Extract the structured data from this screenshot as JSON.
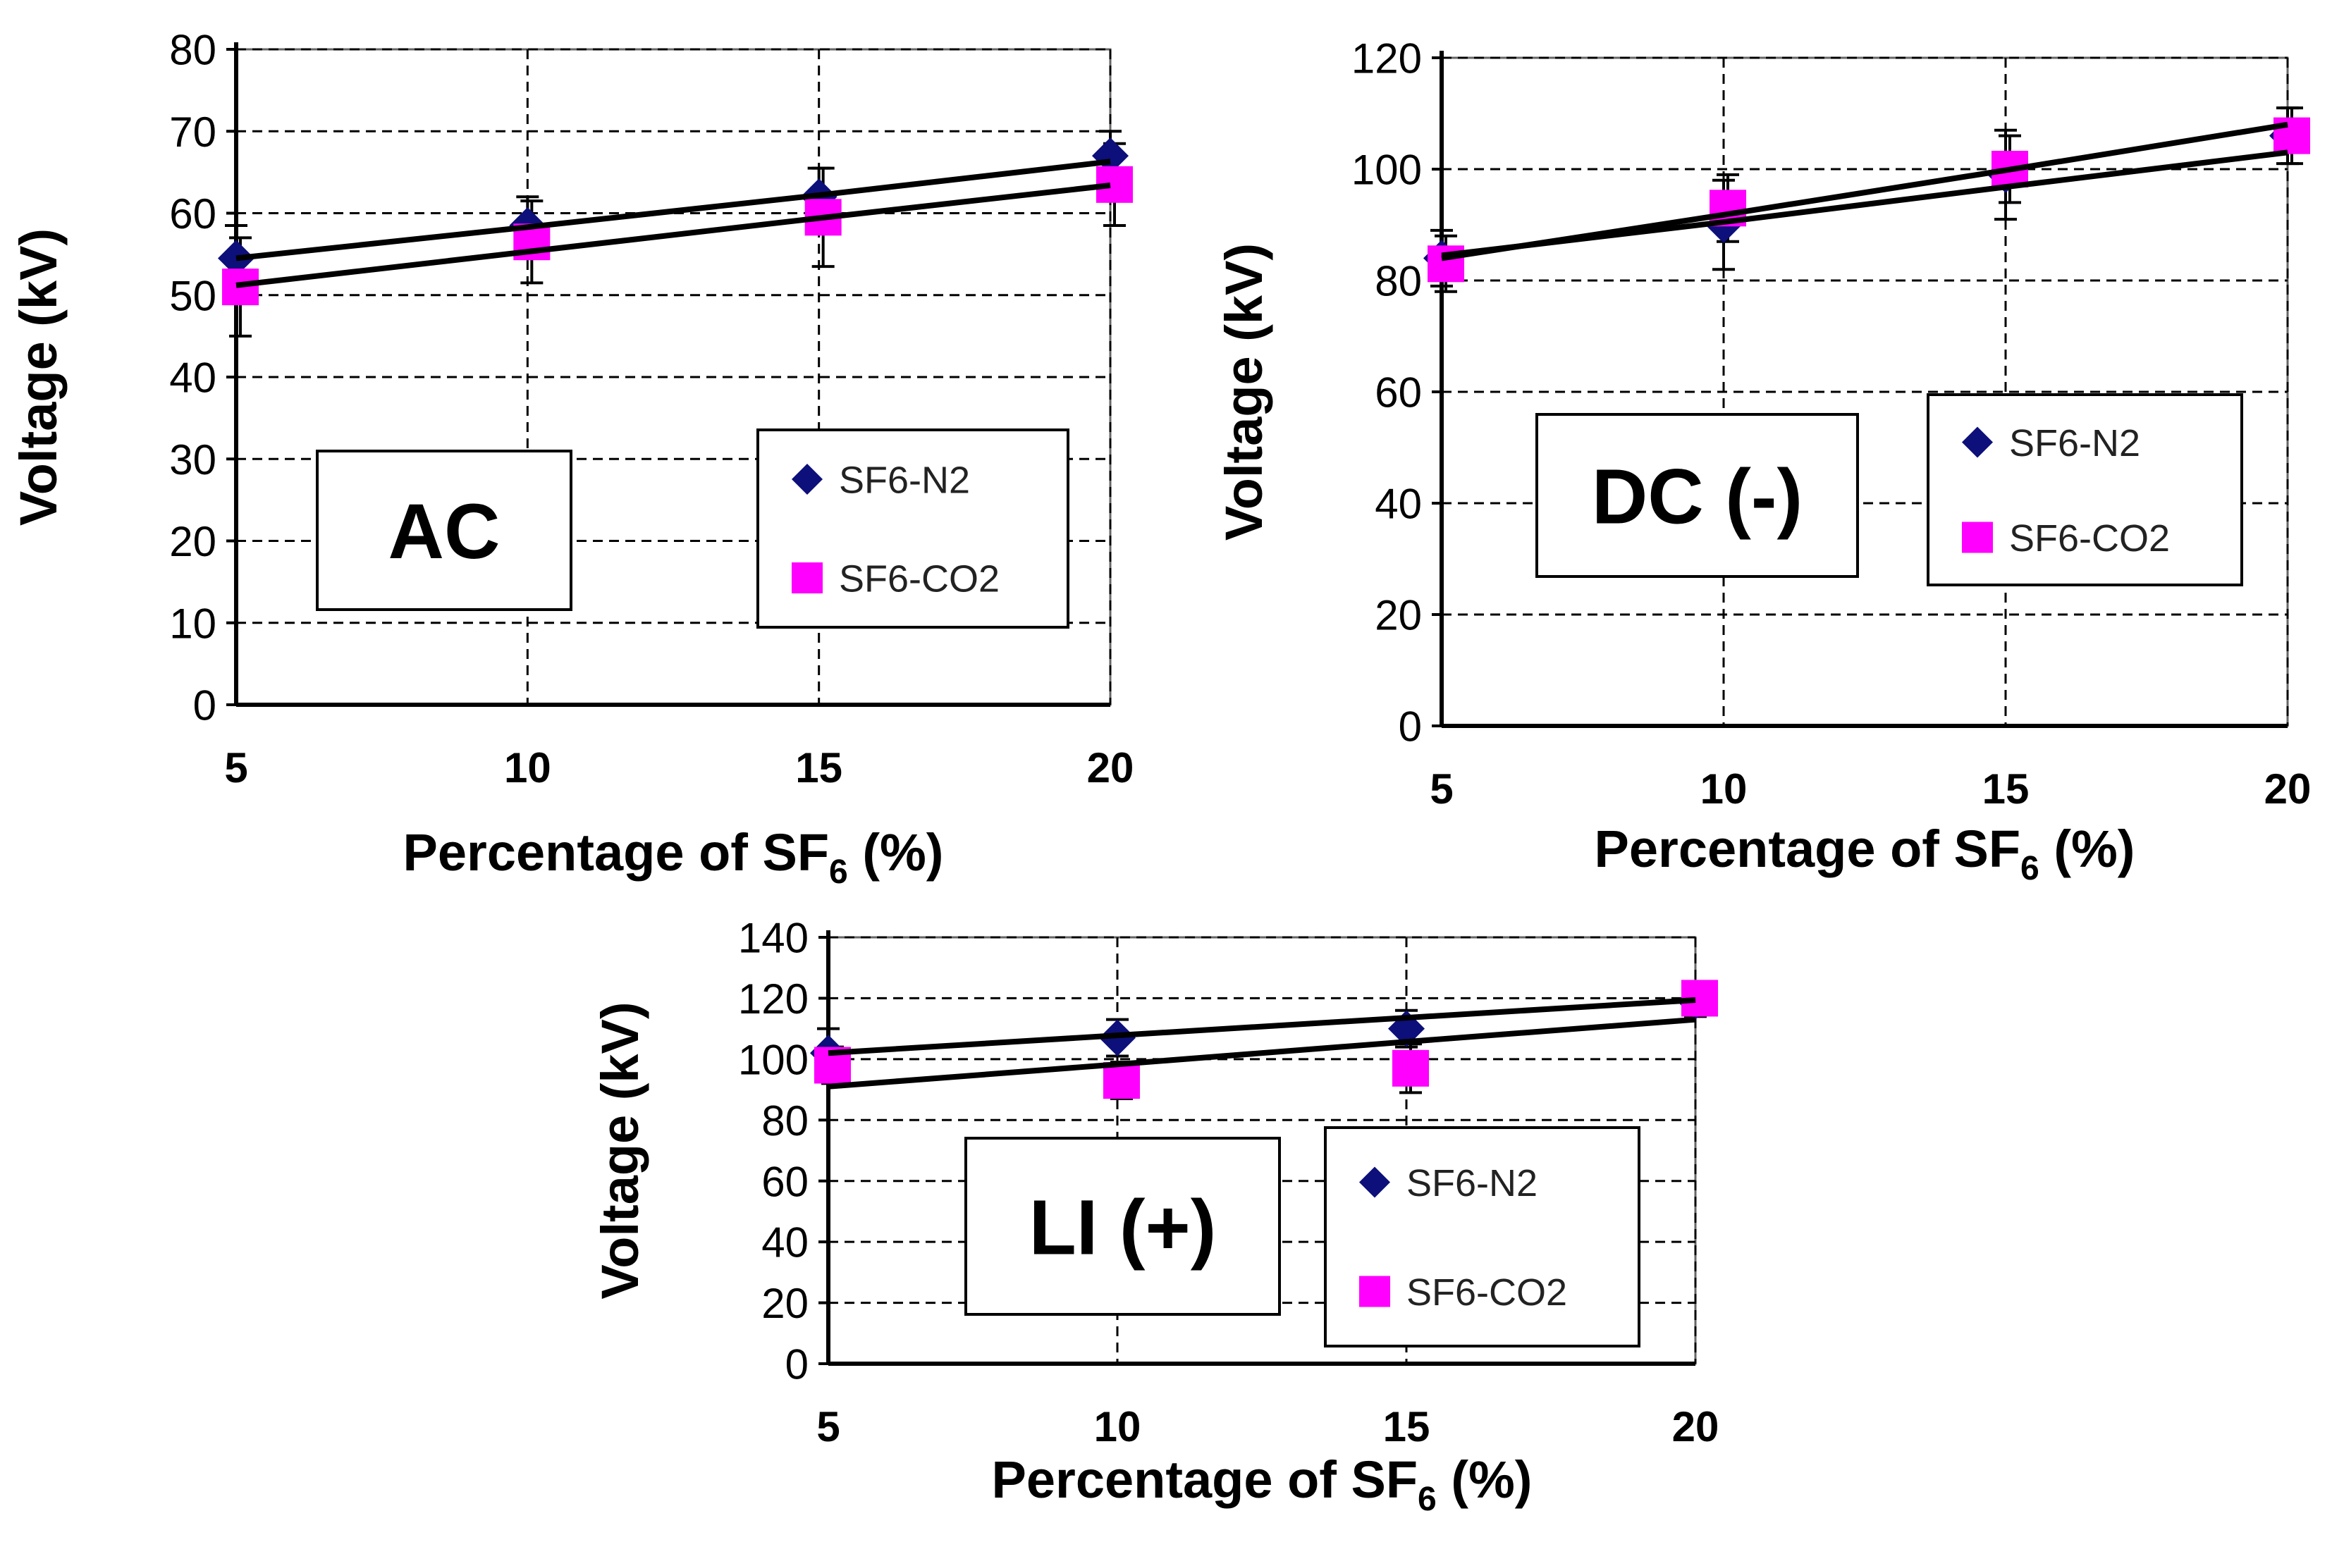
{
  "figure": {
    "series_names": [
      "SF6-N2",
      "SF6-CO2"
    ],
    "colors": {
      "n2": "#0d0f7a",
      "co2": "#ff00ff",
      "line": "#000000",
      "grid": "#000000"
    }
  },
  "chart_data": [
    {
      "type": "scatter",
      "label": "AC",
      "xlabel_main": "Percentage of SF",
      "xlabel_sub": "6",
      "xlabel_tail": " (%)",
      "ylabel": "Voltage (kV)",
      "x": [
        5,
        10,
        15,
        20
      ],
      "x_ticks": [
        "5",
        "10",
        "15",
        "20"
      ],
      "y_ticks": [
        "0",
        "10",
        "20",
        "30",
        "40",
        "50",
        "60",
        "70",
        "80"
      ],
      "xlim": [
        5,
        20
      ],
      "ylim": [
        0,
        80
      ],
      "grid": true,
      "legend_position": "lower-right",
      "series": [
        {
          "name": "SF6-N2",
          "values": [
            54.5,
            58.5,
            62,
            67
          ],
          "errors": [
            4,
            3.5,
            3.5,
            3
          ],
          "trend": [
            54.5,
            58.3,
            62.2,
            66.3
          ]
        },
        {
          "name": "SF6-CO2",
          "values": [
            51,
            56.5,
            59.5,
            63.5
          ],
          "errors": [
            6,
            5,
            6,
            5
          ],
          "trend": [
            51.2,
            55.3,
            59.4,
            63.4
          ]
        }
      ]
    },
    {
      "type": "scatter",
      "label": "DC (-)",
      "xlabel_main": "Percentage of SF",
      "xlabel_sub": "6",
      "xlabel_tail": " (%)",
      "ylabel": "Voltage (kV)",
      "x": [
        5,
        10,
        15,
        20
      ],
      "x_ticks": [
        "5",
        "10",
        "15",
        "20"
      ],
      "y_ticks": [
        "0",
        "20",
        "40",
        "60",
        "80",
        "100",
        "120"
      ],
      "xlim": [
        5,
        20
      ],
      "ylim": [
        0,
        120
      ],
      "grid": true,
      "legend_position": "lower-right",
      "series": [
        {
          "name": "SF6-N2",
          "values": [
            84,
            90,
            99,
            106
          ],
          "errors": [
            5,
            8,
            8,
            5
          ],
          "trend": [
            84,
            91.8,
            99.8,
            108
          ]
        },
        {
          "name": "SF6-CO2",
          "values": [
            83,
            93,
            100,
            106
          ],
          "errors": [
            5,
            6,
            6,
            5
          ],
          "trend": [
            84.5,
            90.5,
            96.8,
            103
          ]
        }
      ]
    },
    {
      "type": "scatter",
      "label": "LI (+)",
      "xlabel_main": "Percentage of SF",
      "xlabel_sub": "6",
      "xlabel_tail": " (%)",
      "ylabel": "Voltage (kV)",
      "x": [
        5,
        10,
        15,
        20
      ],
      "x_ticks": [
        "5",
        "10",
        "15",
        "20"
      ],
      "y_ticks": [
        "0",
        "20",
        "40",
        "60",
        "80",
        "100",
        "120",
        "140"
      ],
      "xlim": [
        5,
        20
      ],
      "ylim": [
        0,
        140
      ],
      "grid": true,
      "legend_position": "lower-right",
      "series": [
        {
          "name": "SF6-N2",
          "values": [
            102,
            107,
            110,
            119
          ],
          "errors": [
            8,
            6,
            6,
            5
          ],
          "trend": [
            102,
            107.8,
            113.6,
            119.4
          ]
        },
        {
          "name": "SF6-CO2",
          "values": [
            98,
            93,
            97,
            120
          ],
          "errors": [
            6,
            6,
            8,
            5
          ],
          "trend": [
            91,
            98.3,
            105.7,
            113
          ]
        }
      ]
    }
  ]
}
